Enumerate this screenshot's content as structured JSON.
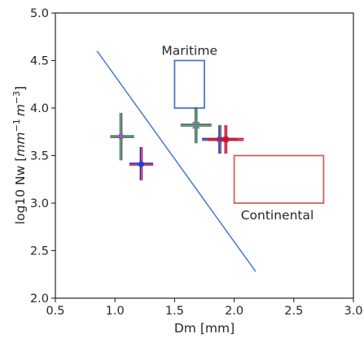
{
  "chart_data": {
    "type": "scatter",
    "xlabel": "Dm [mm]",
    "ylabel_prefix": "log10 Nw [",
    "ylabel_expr": {
      "mm": "mm",
      "mm_exp": "−1",
      "m": "m",
      "m_exp": "−3",
      "space": " "
    },
    "ylabel_suffix": "]",
    "xlim": [
      0.5,
      3.0
    ],
    "ylim": [
      2.0,
      5.0
    ],
    "xticks": [
      0.5,
      1.0,
      1.5,
      2.0,
      2.5,
      3.0
    ],
    "xtick_labels": [
      "0.5",
      "1.0",
      "1.5",
      "2.0",
      "2.5",
      "3.0"
    ],
    "yticks": [
      2.0,
      2.5,
      3.0,
      3.5,
      4.0,
      4.5,
      5.0
    ],
    "ytick_labels": [
      "2.0",
      "2.5",
      "3.0",
      "3.5",
      "4.0",
      "4.5",
      "5.0"
    ],
    "grid": false,
    "line": {
      "x": [
        0.85,
        2.18
      ],
      "y": [
        4.6,
        2.28
      ],
      "color": "#4878d0"
    },
    "regions": [
      {
        "label": "Maritime",
        "x0": 1.5,
        "x1": 1.75,
        "y0": 4.0,
        "y1": 4.5,
        "color": "#4878d0"
      },
      {
        "label": "Continental",
        "x0": 2.0,
        "x1": 2.75,
        "y0": 3.0,
        "y1": 3.5,
        "color": "#d65f5f"
      }
    ],
    "points": [
      {
        "x": 1.05,
        "y": 3.7,
        "xerr": [
          0.96,
          1.16
        ],
        "yerr": [
          3.45,
          3.95
        ],
        "marker_color": "#9b59b6",
        "marker": "circle",
        "h_colors": [
          "#2e8b57",
          "#555555"
        ],
        "v_colors": [
          "#2e8b57",
          "#555555"
        ]
      },
      {
        "x": 1.22,
        "y": 3.41,
        "xerr": [
          1.12,
          1.32
        ],
        "yerr": [
          3.24,
          3.59
        ],
        "marker_color": "#1f3fd6",
        "marker": "circle",
        "h_colors": [
          "#1f1fcc",
          "#c8102e"
        ],
        "v_colors": [
          "#1f1fcc",
          "#c8102e"
        ]
      },
      {
        "x": 1.68,
        "y": 3.82,
        "xerr": [
          1.55,
          1.81
        ],
        "yerr": [
          3.63,
          4.01
        ],
        "marker_color": "#708090",
        "marker": "x",
        "h_colors": [
          "#555555",
          "#2e8b57"
        ],
        "v_colors": [
          "#555555",
          "#2e8b57"
        ]
      },
      {
        "x": 1.88,
        "y": 3.67,
        "xerr": [
          1.73,
          2.03
        ],
        "yerr": [
          3.52,
          3.82
        ],
        "marker_color": "#3b6fd6",
        "marker": "star",
        "h_colors": [
          "#1f1fcc",
          "#555555"
        ],
        "v_colors": [
          "#1f1fcc",
          "#555555"
        ]
      },
      {
        "x": 1.93,
        "y": 3.67,
        "xerr": [
          1.78,
          2.08
        ],
        "yerr": [
          3.52,
          3.82
        ],
        "marker_color": "#c8102e",
        "marker": "star",
        "h_colors": [
          "#c8102e",
          "#c8102e"
        ],
        "v_colors": [
          "#c8102e",
          "#c8102e"
        ]
      }
    ]
  }
}
